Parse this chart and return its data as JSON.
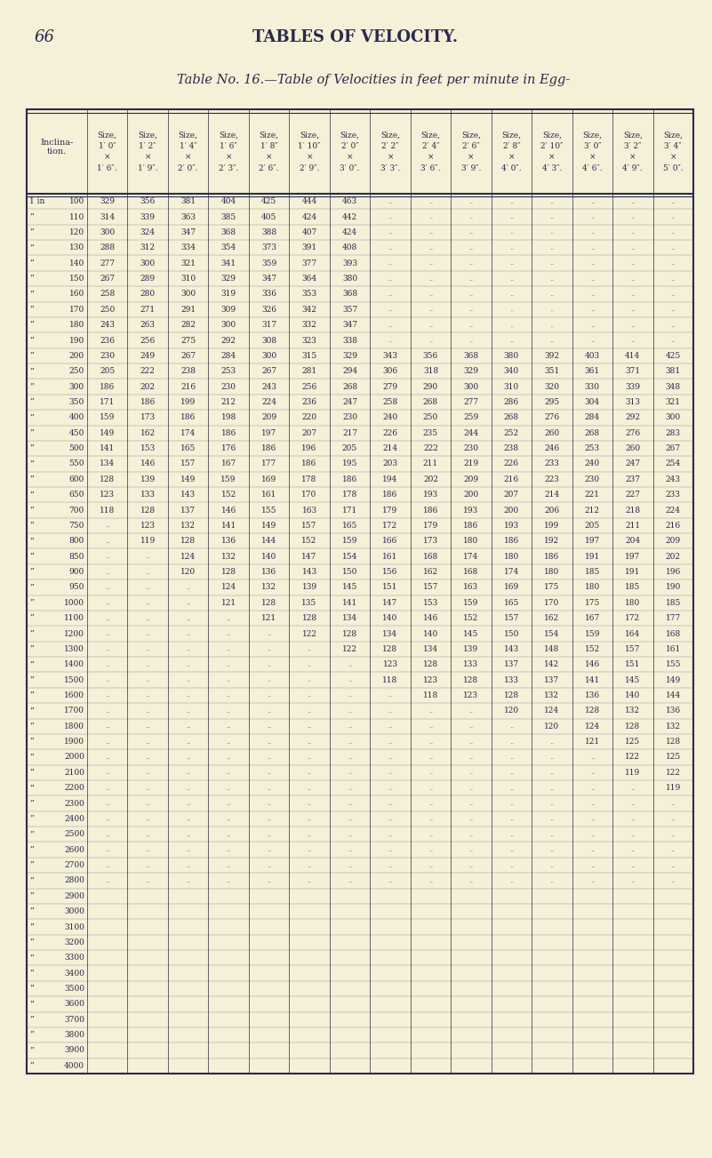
{
  "page_number": "66",
  "page_header": "TABLES OF VELOCITY.",
  "table_title": "Table No. 16.—Table of Velocities in feet per minute in Egg-",
  "background_color": "#f5f0d8",
  "text_color": "#2a2a4a",
  "col_headers": [
    "Inclina-\ntion.",
    "Size,\n1’ 0″\n×\n1’ 6″.",
    "Size,\n1’ 2″\n×\n1’ 9″.",
    "Size,\n1’ 4″\n×\n2’ 0″.",
    "Size,\n1’ 6″\n×\n2’ 3″.",
    "Size,\n1’ 8″\n×\n2’ 6″.",
    "Size,\n1’ 10″\n×\n2’ 9″.",
    "Size,\n2’ 0″\n×\n3’ 0″.",
    "Size,\n2’ 2″\n×\n3’ 3″.",
    "Size,\n2’ 4″\n×\n3’ 6″.",
    "Size,\n2’ 6″\n×\n3’ 9″.",
    "Size,\n2’ 8″\n×\n4’ 0″.",
    "Size,\n2’ 10″\n×\n4’ 3″.",
    "Size,\n3’ 0″\n×\n4’ 6″.",
    "Size,\n3’ 2″\n×\n4’ 9″.",
    "Size,\n3’ 4″\n×\n5’ 0″."
  ],
  "inclination_labels": [
    "1 in 100",
    "\" 110",
    "\" 120",
    "\" 130",
    "\" 140",
    "\" 150",
    "\" 160",
    "\" 170",
    "\" 180",
    "\" 190",
    "\" 200",
    "\" 250",
    "\" 300",
    "\" 350",
    "\" 400",
    "\" 450",
    "\" 500",
    "\" 550",
    "\" 600",
    "\" 650",
    "\" 700",
    "\" 750",
    "\" 800",
    "\" 850",
    "\" 900",
    "\" 950",
    "\" 1000",
    "\" 1100",
    "\" 1200",
    "\" 1300",
    "\" 1400",
    "\" 1500",
    "\" 1600",
    "\" 1700",
    "\" 1800",
    "\" 1900",
    "\" 2000",
    "\" 2100",
    "\" 2200",
    "\" 2300",
    "\" 2400",
    "\" 2500",
    "\" 2600",
    "\" 2700",
    "\" 2800",
    "\" 2900",
    "\" 3000",
    "\" 3100",
    "\" 3200",
    "\" 3300",
    "\" 3400",
    "\" 3500",
    "\" 3600",
    "\" 3700",
    "\" 3800",
    "\" 3900",
    "\" 4000"
  ],
  "table_data": [
    [
      329,
      356,
      381,
      404,
      425,
      444,
      463,
      null,
      null,
      null,
      null,
      null,
      null,
      null,
      null
    ],
    [
      314,
      339,
      363,
      385,
      405,
      424,
      442,
      null,
      null,
      null,
      null,
      null,
      null,
      null,
      null
    ],
    [
      300,
      324,
      347,
      368,
      388,
      407,
      424,
      null,
      null,
      null,
      null,
      null,
      null,
      null,
      null
    ],
    [
      288,
      312,
      334,
      354,
      373,
      391,
      408,
      null,
      null,
      null,
      null,
      null,
      null,
      null,
      null
    ],
    [
      277,
      300,
      321,
      341,
      359,
      377,
      393,
      null,
      null,
      null,
      null,
      null,
      null,
      null,
      null
    ],
    [
      267,
      289,
      310,
      329,
      347,
      364,
      380,
      null,
      null,
      null,
      null,
      null,
      null,
      null,
      null
    ],
    [
      258,
      280,
      300,
      319,
      336,
      353,
      368,
      null,
      null,
      null,
      null,
      null,
      null,
      null,
      null
    ],
    [
      250,
      271,
      291,
      309,
      326,
      342,
      357,
      null,
      null,
      null,
      null,
      null,
      null,
      null,
      null
    ],
    [
      243,
      263,
      282,
      300,
      317,
      332,
      347,
      null,
      null,
      null,
      null,
      null,
      null,
      null,
      null
    ],
    [
      236,
      256,
      275,
      292,
      308,
      323,
      338,
      null,
      null,
      null,
      null,
      null,
      null,
      null,
      null
    ],
    [
      230,
      249,
      267,
      284,
      300,
      315,
      329,
      343,
      356,
      368,
      380,
      392,
      403,
      414,
      425
    ],
    [
      205,
      222,
      238,
      253,
      267,
      281,
      294,
      306,
      318,
      329,
      340,
      351,
      361,
      371,
      381
    ],
    [
      186,
      202,
      216,
      230,
      243,
      256,
      268,
      279,
      290,
      300,
      310,
      320,
      330,
      339,
      348
    ],
    [
      171,
      186,
      199,
      212,
      224,
      236,
      247,
      258,
      268,
      277,
      286,
      295,
      304,
      313,
      321
    ],
    [
      159,
      173,
      186,
      198,
      209,
      220,
      230,
      240,
      250,
      259,
      268,
      276,
      284,
      292,
      300
    ],
    [
      149,
      162,
      174,
      186,
      197,
      207,
      217,
      226,
      235,
      244,
      252,
      260,
      268,
      276,
      283
    ],
    [
      141,
      153,
      165,
      176,
      186,
      196,
      205,
      214,
      222,
      230,
      238,
      246,
      253,
      260,
      267
    ],
    [
      134,
      146,
      157,
      167,
      177,
      186,
      195,
      203,
      211,
      219,
      226,
      233,
      240,
      247,
      254
    ],
    [
      128,
      139,
      149,
      159,
      169,
      178,
      186,
      194,
      202,
      209,
      216,
      223,
      230,
      237,
      243
    ],
    [
      123,
      133,
      143,
      152,
      161,
      170,
      178,
      186,
      193,
      200,
      207,
      214,
      221,
      227,
      233
    ],
    [
      118,
      128,
      137,
      146,
      155,
      163,
      171,
      179,
      186,
      193,
      200,
      206,
      212,
      218,
      224
    ],
    [
      null,
      123,
      132,
      141,
      149,
      157,
      165,
      172,
      179,
      186,
      193,
      199,
      205,
      211,
      216
    ],
    [
      null,
      119,
      128,
      136,
      144,
      152,
      159,
      166,
      173,
      180,
      186,
      192,
      197,
      204,
      209
    ],
    [
      null,
      null,
      124,
      132,
      140,
      147,
      154,
      161,
      168,
      174,
      180,
      186,
      191,
      197,
      202
    ],
    [
      null,
      null,
      120,
      128,
      136,
      143,
      150,
      156,
      162,
      168,
      174,
      180,
      185,
      191,
      196
    ],
    [
      null,
      null,
      null,
      124,
      132,
      139,
      145,
      151,
      157,
      163,
      169,
      175,
      180,
      185,
      190
    ],
    [
      null,
      null,
      null,
      121,
      128,
      135,
      141,
      147,
      153,
      159,
      165,
      170,
      175,
      180,
      185
    ],
    [
      null,
      null,
      null,
      null,
      121,
      128,
      134,
      140,
      146,
      152,
      157,
      162,
      167,
      172,
      177
    ],
    [
      null,
      null,
      null,
      null,
      null,
      122,
      128,
      134,
      140,
      145,
      150,
      154,
      159,
      164,
      168
    ],
    [
      null,
      null,
      null,
      null,
      null,
      null,
      122,
      128,
      134,
      139,
      143,
      148,
      152,
      157,
      161
    ],
    [
      null,
      null,
      null,
      null,
      null,
      null,
      null,
      123,
      128,
      133,
      137,
      142,
      146,
      151,
      155
    ],
    [
      null,
      null,
      null,
      null,
      null,
      null,
      null,
      118,
      123,
      128,
      133,
      137,
      141,
      145,
      149
    ],
    [
      null,
      null,
      null,
      null,
      null,
      null,
      null,
      null,
      118,
      123,
      128,
      132,
      136,
      140,
      144
    ],
    [
      null,
      null,
      null,
      null,
      null,
      null,
      null,
      null,
      null,
      null,
      120,
      124,
      128,
      132,
      136
    ],
    [
      null,
      null,
      null,
      null,
      null,
      null,
      null,
      null,
      null,
      null,
      null,
      120,
      124,
      128,
      132
    ],
    [
      null,
      null,
      null,
      null,
      null,
      null,
      null,
      null,
      null,
      null,
      null,
      null,
      121,
      125,
      128
    ],
    [
      null,
      null,
      null,
      null,
      null,
      null,
      null,
      null,
      null,
      null,
      null,
      null,
      null,
      122,
      125
    ],
    [
      null,
      null,
      null,
      null,
      null,
      null,
      null,
      null,
      null,
      null,
      null,
      null,
      null,
      119,
      122
    ],
    [
      null,
      null,
      null,
      null,
      null,
      null,
      null,
      null,
      null,
      null,
      null,
      null,
      null,
      null,
      119
    ],
    [
      null,
      null,
      null,
      null,
      null,
      null,
      null,
      null,
      null,
      null,
      null,
      null,
      null,
      null,
      null
    ],
    [
      null,
      null,
      null,
      null,
      null,
      null,
      null,
      null,
      null,
      null,
      null,
      null,
      null,
      null,
      null
    ],
    [
      null,
      null,
      null,
      null,
      null,
      null,
      null,
      null,
      null,
      null,
      null,
      null,
      null,
      null,
      null
    ],
    [
      null,
      null,
      null,
      null,
      null,
      null,
      null,
      null,
      null,
      null,
      null,
      null,
      null,
      null,
      null
    ],
    [
      null,
      null,
      null,
      null,
      null,
      null,
      null,
      null,
      null,
      null,
      null,
      null,
      null,
      null,
      null
    ],
    [
      null,
      null,
      null,
      null,
      null,
      null,
      null,
      null,
      null,
      null,
      null,
      null,
      null,
      null,
      null
    ],
    [
      null,
      null,
      null,
      null,
      null,
      null,
      null,
      null,
      null,
      null,
      null,
      null,
      null,
      null,
      null
    ],
    [
      null,
      null,
      null,
      null,
      null,
      null,
      null,
      null,
      null,
      null,
      null,
      null,
      null,
      null,
      null
    ],
    [
      null,
      null,
      null,
      null,
      null,
      null,
      null,
      null,
      null,
      null,
      null,
      null,
      null,
      null,
      null
    ],
    [
      null,
      null,
      null,
      null,
      null,
      null,
      null,
      null,
      null,
      null,
      null,
      null,
      null,
      null,
      null
    ],
    [
      null,
      null,
      null,
      null,
      null,
      null,
      null,
      null,
      null,
      null,
      null,
      null,
      null,
      null,
      null
    ],
    [
      null,
      null,
      null,
      null,
      null,
      null,
      null,
      null,
      null,
      null,
      null,
      null,
      null,
      null,
      null
    ],
    [
      null,
      null,
      null,
      null,
      null,
      null,
      null,
      null,
      null,
      null,
      null,
      null,
      null,
      null,
      null
    ],
    [
      null,
      null,
      null,
      null,
      null,
      null,
      null,
      null,
      null,
      null,
      null,
      null,
      null,
      null,
      null
    ],
    [
      null,
      null,
      null,
      null,
      null,
      null,
      null,
      null,
      null,
      null,
      null,
      null,
      null,
      null,
      null
    ],
    [
      null,
      null,
      null,
      null,
      null,
      null,
      null,
      null,
      null,
      null,
      null,
      null,
      null,
      null,
      null
    ],
    [
      null,
      null,
      null,
      null,
      null,
      null,
      null,
      null,
      null,
      null,
      null,
      null,
      null,
      null,
      null
    ],
    [
      null,
      null,
      null,
      null,
      null,
      null,
      null,
      null,
      null,
      null,
      null,
      null,
      null,
      null,
      null
    ]
  ]
}
